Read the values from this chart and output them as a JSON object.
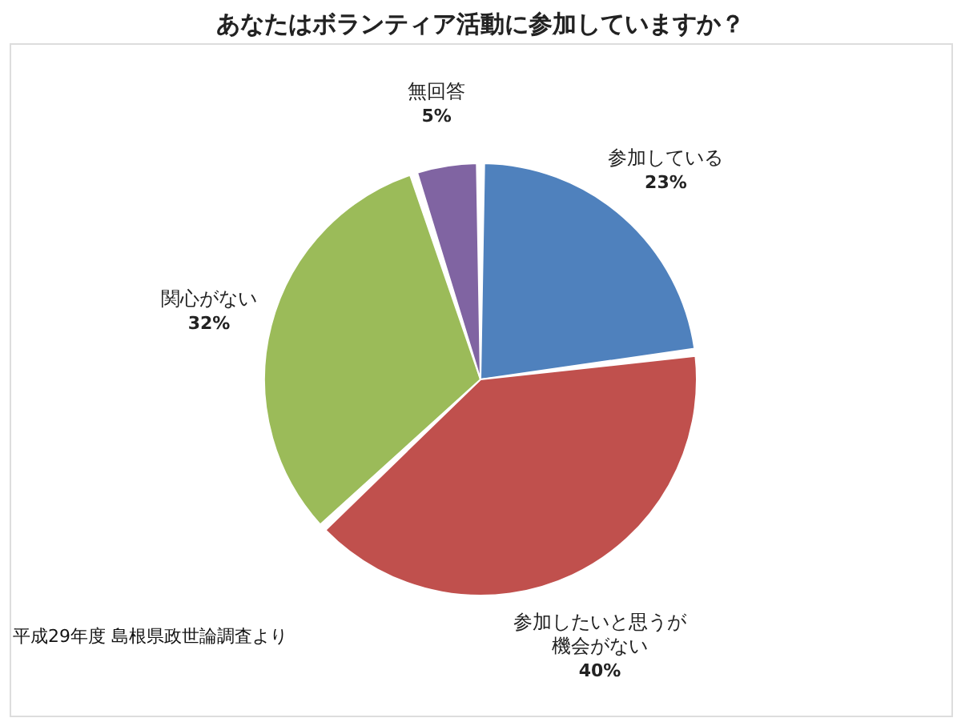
{
  "chart_data": {
    "type": "pie",
    "title": "あなたはボランティア活動に参加していますか？",
    "categories": [
      "参加している",
      "参加したいと思うが機会がない",
      "関心がない",
      "無回答"
    ],
    "values": [
      23,
      40,
      32,
      5
    ],
    "value_labels": [
      "23%",
      "40%",
      "32%",
      "5%"
    ],
    "colors": [
      "#4f81bd",
      "#c0504d",
      "#9bbb59",
      "#8064a2"
    ],
    "annotations": [
      "平成29年度 島根県政世論調査より"
    ]
  }
}
